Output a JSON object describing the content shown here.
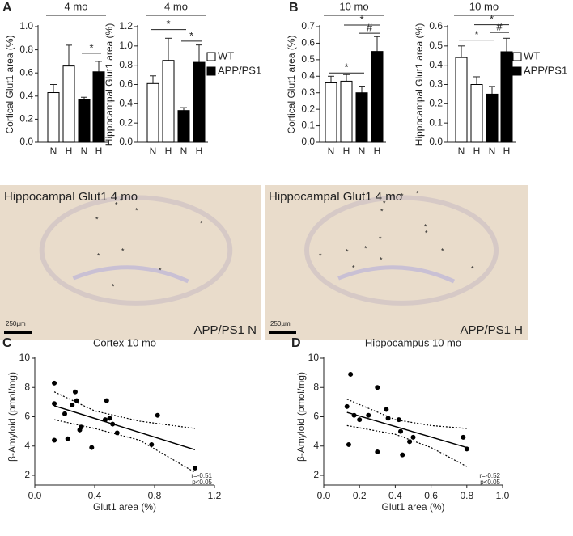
{
  "chart_data": [
    {
      "type": "bar",
      "panel": "A",
      "title": "4 mo",
      "ylabel": "Cortical Glut1 area (%)",
      "categories": [
        "N",
        "H",
        "N",
        "H"
      ],
      "series": [
        {
          "name": "WT",
          "color": "#ffffff",
          "values": [
            0.43,
            0.66,
            null,
            null
          ],
          "errors": [
            0.07,
            0.18,
            null,
            null
          ]
        },
        {
          "name": "APP/PS1",
          "color": "#000000",
          "values": [
            null,
            null,
            0.37,
            0.61
          ],
          "errors": [
            null,
            null,
            0.02,
            0.09
          ]
        }
      ],
      "ylim": [
        0,
        1.0
      ],
      "yticks": [
        {
          "value": 0,
          "label": "0.0"
        },
        0.2,
        0.4,
        0.6,
        0.8,
        {
          "value": 1,
          "label": "1.0"
        }
      ],
      "brackets": [
        {
          "label": "*",
          "from": 2,
          "to": 3,
          "y": 0.77
        }
      ],
      "legend": false
    },
    {
      "type": "bar",
      "title": "4 mo",
      "ylabel": "Hippocampal Glut1 area (%)",
      "categories": [
        "N",
        "H",
        "N",
        "H"
      ],
      "series": [
        {
          "name": "WT",
          "color": "#ffffff",
          "values": [
            0.61,
            0.85,
            null,
            null
          ],
          "errors": [
            0.08,
            0.23,
            null,
            null
          ]
        },
        {
          "name": "APP/PS1",
          "color": "#000000",
          "values": [
            null,
            null,
            0.33,
            0.83
          ],
          "errors": [
            null,
            null,
            0.03,
            0.18
          ]
        }
      ],
      "ylim": [
        0,
        1.2
      ],
      "yticks": [
        {
          "value": 0,
          "label": "0.0"
        },
        0.2,
        0.4,
        0.6,
        0.8,
        {
          "value": 1,
          "label": "1.0"
        },
        1.2
      ],
      "brackets": [
        {
          "label": "*",
          "from": 0,
          "to": 2,
          "y": 1.17
        },
        {
          "label": "*",
          "from": 2,
          "to": 3,
          "y": 1.05
        }
      ],
      "legend": true
    },
    {
      "type": "bar",
      "panel": "B",
      "title": "10 mo",
      "ylabel": "Cortical Glut1 area (%)",
      "categories": [
        "N",
        "H",
        "N",
        "H"
      ],
      "series": [
        {
          "name": "WT",
          "color": "#ffffff",
          "values": [
            0.36,
            0.37,
            null,
            null
          ],
          "errors": [
            0.04,
            0.04,
            null,
            null
          ]
        },
        {
          "name": "APP/PS1",
          "color": "#000000",
          "values": [
            null,
            null,
            0.3,
            0.55
          ],
          "errors": [
            null,
            null,
            0.04,
            0.09
          ]
        }
      ],
      "ylim": [
        0,
        0.7
      ],
      "yticks": [
        {
          "value": 0,
          "label": "0.0"
        },
        0.1,
        0.2,
        0.3,
        0.4,
        0.5,
        0.6,
        0.7
      ],
      "brackets": [
        {
          "label": "*",
          "from": 0,
          "to": 2,
          "y": 0.42
        },
        {
          "label": "#",
          "from": 2,
          "to": 3,
          "y": 0.66
        },
        {
          "label": "*",
          "from": 1,
          "to": 3,
          "y": 0.71
        }
      ],
      "legend": false
    },
    {
      "type": "bar",
      "title": "10 mo",
      "ylabel": "Hippocampal Glut1 area (%)",
      "categories": [
        "N",
        "H",
        "N",
        "H"
      ],
      "series": [
        {
          "name": "WT",
          "color": "#ffffff",
          "values": [
            0.44,
            0.3,
            null,
            null
          ],
          "errors": [
            0.06,
            0.04,
            null,
            null
          ]
        },
        {
          "name": "APP/PS1",
          "color": "#000000",
          "values": [
            null,
            null,
            0.25,
            0.47
          ],
          "errors": [
            null,
            null,
            0.04,
            0.07
          ]
        }
      ],
      "ylim": [
        0,
        0.6
      ],
      "yticks": [
        {
          "value": 0,
          "label": "0.0"
        },
        0.1,
        0.2,
        0.3,
        0.4,
        0.5,
        0.6
      ],
      "brackets": [
        {
          "label": "*",
          "from": 0,
          "to": 2,
          "y": 0.53
        },
        {
          "label": "#",
          "from": 2,
          "to": 3,
          "y": 0.57
        },
        {
          "label": "*",
          "from": 1,
          "to": 3,
          "y": 0.61
        }
      ],
      "legend": true
    },
    {
      "type": "image",
      "title": "Hippocampal Glut1 4 mo",
      "scale_bar": "250µm",
      "label": "APP/PS1 N",
      "marker": "*"
    },
    {
      "type": "image",
      "title": "Hippocampal Glut1 4 mo",
      "scale_bar": "250µm",
      "label": "APP/PS1 H",
      "marker": "*"
    },
    {
      "type": "scatter",
      "panel": "C",
      "title": "Cortex 10 mo",
      "xlabel": "Glut1 area (%)",
      "ylabel": "β-Amyloid (pmol/mg)",
      "x": [
        0.13,
        0.13,
        0.13,
        0.2,
        0.22,
        0.25,
        0.27,
        0.28,
        0.3,
        0.31,
        0.38,
        0.47,
        0.48,
        0.5,
        0.52,
        0.55,
        0.78,
        0.82,
        1.07
      ],
      "values": [
        8.3,
        6.9,
        4.4,
        6.2,
        4.5,
        6.8,
        7.7,
        7.1,
        5.1,
        5.3,
        3.9,
        5.8,
        7.1,
        5.9,
        5.5,
        4.9,
        4.1,
        6.1,
        2.5
      ],
      "xlim": [
        0,
        1.2
      ],
      "xticks": [
        {
          "value": 0,
          "label": "0.0"
        },
        0.4,
        0.8,
        1.2
      ],
      "ylim": [
        2,
        10
      ],
      "yticks": [
        2,
        4,
        6,
        8,
        10
      ],
      "fit": {
        "x": [
          0.13,
          1.07
        ],
        "y": [
          6.75,
          3.75
        ]
      },
      "ci_upper": {
        "x": [
          0.13,
          0.4,
          0.7,
          1.07
        ],
        "y": [
          7.7,
          6.4,
          5.7,
          5.2
        ]
      },
      "ci_lower": {
        "x": [
          0.13,
          0.4,
          0.7,
          1.07
        ],
        "y": [
          5.8,
          5.2,
          4.4,
          2.2
        ]
      },
      "annotations": [
        "r=-0.51",
        "p<0.05"
      ]
    },
    {
      "type": "scatter",
      "panel": "D",
      "title": "Hippocampus 10 mo",
      "xlabel": "Glut1 area (%)",
      "ylabel": "β-Amyloid (pmol/mg)",
      "x": [
        0.13,
        0.14,
        0.15,
        0.17,
        0.2,
        0.25,
        0.3,
        0.3,
        0.35,
        0.36,
        0.42,
        0.43,
        0.44,
        0.48,
        0.5,
        0.78,
        0.8
      ],
      "values": [
        6.7,
        4.1,
        8.9,
        6.1,
        5.8,
        6.1,
        8.0,
        3.6,
        6.5,
        5.9,
        5.8,
        5.0,
        3.4,
        4.3,
        4.6,
        4.6,
        3.8
      ],
      "xlim": [
        0,
        1.0
      ],
      "xticks": [
        {
          "value": 0,
          "label": "0.0"
        },
        0.2,
        0.4,
        0.6,
        0.8,
        {
          "value": 1,
          "label": "1.0"
        }
      ],
      "ylim": [
        2,
        10
      ],
      "yticks": [
        2,
        4,
        6,
        8,
        10
      ],
      "fit": {
        "x": [
          0.13,
          0.8
        ],
        "y": [
          6.3,
          3.9
        ]
      },
      "ci_upper": {
        "x": [
          0.13,
          0.4,
          0.6,
          0.8
        ],
        "y": [
          7.2,
          5.8,
          5.4,
          5.2
        ]
      },
      "ci_lower": {
        "x": [
          0.13,
          0.4,
          0.6,
          0.8
        ],
        "y": [
          5.4,
          4.8,
          3.9,
          2.6
        ]
      },
      "annotations": [
        "r=-0.52",
        "p<0.05"
      ]
    }
  ]
}
